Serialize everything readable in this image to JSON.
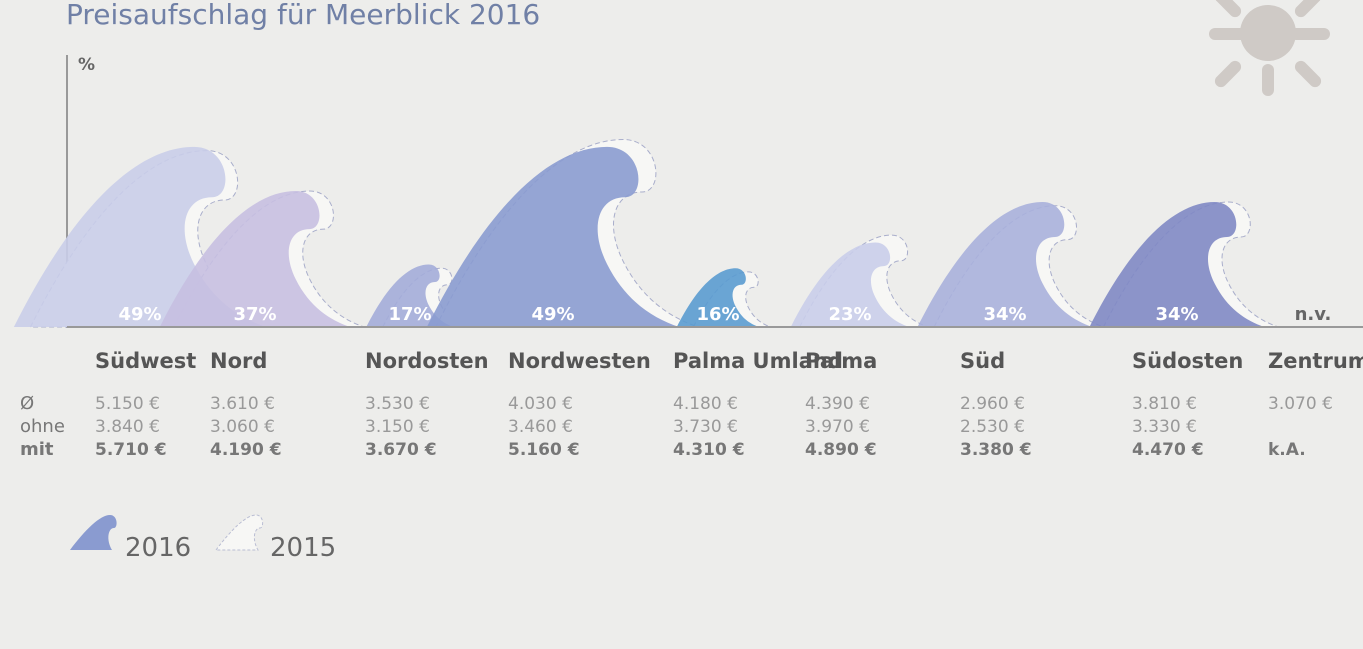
{
  "chart_data": {
    "type": "wave",
    "title": "Preisaufschlag für Meerblick 2016",
    "y_label": "%",
    "categories": [
      "Südwest",
      "Nord",
      "Nordosten",
      "Nordwesten",
      "Palma Umland",
      "Palma",
      "Süd",
      "Südosten",
      "Zentrum"
    ],
    "ylim": [
      0,
      74
    ],
    "series": [
      {
        "name": "2015",
        "color": "#f7f7f5",
        "stroke": "#a9aecb",
        "values": [
          48,
          37,
          16,
          51,
          15,
          25,
          33,
          34,
          null
        ]
      },
      {
        "name": "2016",
        "color": "#8a9bd0",
        "colors": [
          "#c9cde9",
          "#c6bfe1",
          "#a3acd9",
          "#8a9bd0",
          "#5a9bd0",
          "#c9cdea",
          "#a9b0dc",
          "#7f88c4",
          "#8a9bd0"
        ],
        "values": [
          49,
          37,
          17,
          49,
          16,
          23,
          34,
          34,
          null
        ],
        "value_labels": [
          "49%",
          "37%",
          "17%",
          "49%",
          "16%",
          "23%",
          "34%",
          "34%",
          "n.v."
        ]
      }
    ]
  },
  "table": {
    "row_labels": [
      "Ø",
      "ohne",
      "mit"
    ],
    "rows": [
      [
        "5.150 €",
        "3.610 €",
        "3.530 €",
        "4.030 €",
        "4.180 €",
        "4.390 €",
        "2.960 €",
        "3.810 €",
        "3.070 €"
      ],
      [
        "3.840 €",
        "3.060 €",
        "3.150 €",
        "3.460 €",
        "3.730 €",
        "3.970 €",
        "2.530 €",
        "3.330 €",
        null
      ],
      [
        "5.710 €",
        "4.190 €",
        "3.670 €",
        "5.160 €",
        "4.310 €",
        "4.890 €",
        "3.380 €",
        "4.470 €",
        "k.A."
      ]
    ]
  }
}
